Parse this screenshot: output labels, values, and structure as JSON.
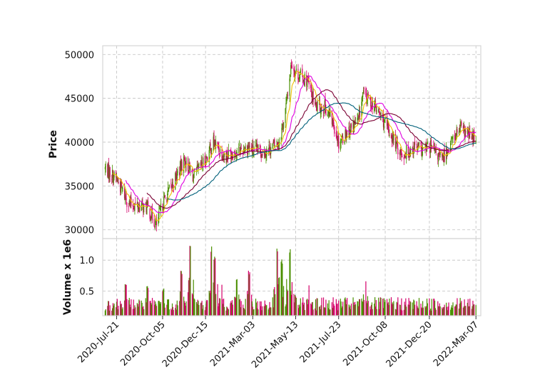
{
  "chart_data": {
    "type": "candlestick",
    "colors": {
      "up": "#4b8f00",
      "down": "#d4006a",
      "ma_short": "#f0c000",
      "ma_mid": "#e000e0",
      "ma_long": "#7a0033",
      "ma_longest": "#00607a"
    },
    "price_panel": {
      "ylabel": "Price",
      "ylim": [
        29000,
        51000
      ],
      "yticks": [
        30000,
        35000,
        40000,
        45000,
        50000
      ],
      "grid": true
    },
    "volume_panel": {
      "ylabel": "Volume x 1e6",
      "ylim": [
        0.1,
        1.35
      ],
      "yticks": [
        0.5,
        1.0
      ],
      "ytick_labels": [
        "0.5",
        "1.0"
      ],
      "grid": true
    },
    "x_axis": {
      "range": [
        "2020-06-28",
        "2022-03-15"
      ],
      "ticks": [
        "2020-07-21",
        "2020-10-05",
        "2020-12-15",
        "2021-03-03",
        "2021-05-13",
        "2021-07-23",
        "2021-10-08",
        "2021-12-20",
        "2022-03-07"
      ],
      "tick_labels": [
        "2020-Jul-21",
        "2020-Oct-05",
        "2020-Dec-15",
        "2021-Mar-03",
        "2021-May-13",
        "2021-Jul-23",
        "2021-Oct-08",
        "2021-Dec-20",
        "2022-Mar-07"
      ]
    },
    "close_anchors": [
      [
        "2020-07-02",
        37000
      ],
      [
        "2020-07-21",
        35800
      ],
      [
        "2020-08-10",
        33000
      ],
      [
        "2020-09-10",
        32500
      ],
      [
        "2020-09-25",
        30500
      ],
      [
        "2020-10-05",
        33000
      ],
      [
        "2020-10-20",
        35000
      ],
      [
        "2020-11-10",
        38000
      ],
      [
        "2020-11-25",
        36000
      ],
      [
        "2020-12-15",
        38000
      ],
      [
        "2020-12-28",
        40000
      ],
      [
        "2021-01-15",
        38500
      ],
      [
        "2021-02-05",
        39000
      ],
      [
        "2021-02-25",
        39500
      ],
      [
        "2021-03-03",
        39000
      ],
      [
        "2021-03-25",
        39000
      ],
      [
        "2021-04-15",
        40000
      ],
      [
        "2021-04-25",
        43000
      ],
      [
        "2021-05-06",
        49000
      ],
      [
        "2021-05-13",
        48000
      ],
      [
        "2021-06-01",
        47000
      ],
      [
        "2021-06-15",
        44000
      ],
      [
        "2021-07-01",
        44000
      ],
      [
        "2021-07-15",
        42000
      ],
      [
        "2021-07-23",
        40000
      ],
      [
        "2021-08-10",
        41500
      ],
      [
        "2021-08-25",
        42500
      ],
      [
        "2021-09-01",
        45500
      ],
      [
        "2021-09-15",
        44500
      ],
      [
        "2021-10-01",
        43000
      ],
      [
        "2021-10-08",
        42000
      ],
      [
        "2021-10-20",
        40500
      ],
      [
        "2021-11-05",
        38500
      ],
      [
        "2021-11-25",
        39500
      ],
      [
        "2021-12-10",
        39000
      ],
      [
        "2021-12-20",
        39500
      ],
      [
        "2022-01-10",
        38000
      ],
      [
        "2022-01-25",
        40000
      ],
      [
        "2022-02-08",
        41500
      ],
      [
        "2022-02-20",
        41000
      ],
      [
        "2022-03-07",
        40300
      ]
    ],
    "volume_spikes": [
      [
        "2020-08-05",
        0.62
      ],
      [
        "2020-09-10",
        0.58
      ],
      [
        "2020-10-06",
        0.55
      ],
      [
        "2020-11-05",
        0.85
      ],
      [
        "2020-11-20",
        1.25
      ],
      [
        "2020-12-25",
        1.23
      ],
      [
        "2020-12-30",
        1.1
      ],
      [
        "2021-01-10",
        0.62
      ],
      [
        "2021-02-05",
        0.74
      ],
      [
        "2021-02-25",
        0.83
      ],
      [
        "2021-04-12",
        1.24
      ],
      [
        "2021-04-20",
        1.02
      ],
      [
        "2021-05-03",
        1.21
      ],
      [
        "2021-05-08",
        0.7
      ],
      [
        "2021-06-05",
        0.62
      ],
      [
        "2021-09-05",
        0.72
      ]
    ],
    "moving_averages": [
      {
        "window": 10,
        "color_key": "ma_short"
      },
      {
        "window": 25,
        "color_key": "ma_mid"
      },
      {
        "window": 50,
        "color_key": "ma_long"
      },
      {
        "window": 75,
        "color_key": "ma_longest"
      }
    ]
  }
}
